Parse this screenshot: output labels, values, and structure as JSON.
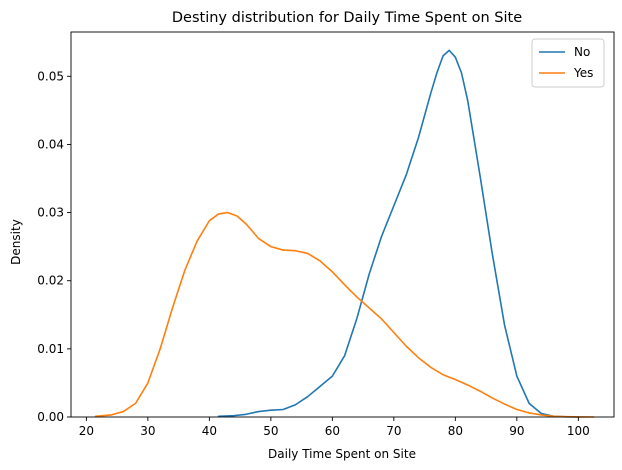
{
  "chart_data": {
    "type": "line",
    "title": "Destiny distribution for Daily Time Spent on Site",
    "xlabel": "Daily Time Spent on Site",
    "ylabel": "Density",
    "xlim": [
      17.5,
      105.8
    ],
    "ylim": [
      0,
      0.0565
    ],
    "xticks": [
      20,
      30,
      40,
      50,
      60,
      70,
      80,
      90,
      100
    ],
    "yticks": [
      0.0,
      0.01,
      0.02,
      0.03,
      0.04,
      0.05
    ],
    "ytick_labels": [
      "0.00",
      "0.01",
      "0.02",
      "0.03",
      "0.04",
      "0.05"
    ],
    "grid": false,
    "legend": "top-right",
    "series": [
      {
        "name": "No",
        "color": "#1f77b4",
        "x": [
          41.5,
          44,
          46,
          48,
          50,
          52,
          54,
          56,
          58,
          60,
          62,
          64,
          66,
          68,
          70,
          72,
          74,
          76,
          77,
          78,
          79,
          80,
          81,
          82,
          84,
          86,
          88,
          90,
          92,
          94,
          96,
          98,
          100
        ],
        "y": [
          0.0001,
          0.0002,
          0.0004,
          0.0008,
          0.001,
          0.0011,
          0.0018,
          0.003,
          0.0045,
          0.006,
          0.009,
          0.0145,
          0.021,
          0.0265,
          0.031,
          0.0355,
          0.041,
          0.0475,
          0.0505,
          0.053,
          0.0538,
          0.0528,
          0.0505,
          0.0465,
          0.0355,
          0.024,
          0.0135,
          0.006,
          0.002,
          0.0005,
          0.0001,
          2e-05,
          0.0
        ]
      },
      {
        "name": "Yes",
        "color": "#ff7f0e",
        "x": [
          21.5,
          24,
          26,
          28,
          30,
          32,
          34,
          36,
          38,
          40,
          41.5,
          43,
          44.5,
          46,
          48,
          50,
          52,
          54,
          56,
          58,
          60,
          62,
          64,
          66,
          68,
          70,
          72,
          74,
          76,
          78,
          80,
          82,
          84,
          86,
          88,
          90,
          92,
          94,
          96,
          98,
          100,
          102.5
        ],
        "y": [
          0.0001,
          0.0003,
          0.0008,
          0.002,
          0.005,
          0.01,
          0.016,
          0.0215,
          0.0258,
          0.0288,
          0.0298,
          0.03,
          0.0295,
          0.0283,
          0.0262,
          0.025,
          0.0245,
          0.0244,
          0.024,
          0.0229,
          0.0213,
          0.0194,
          0.0176,
          0.016,
          0.0144,
          0.0124,
          0.0104,
          0.0087,
          0.0073,
          0.0062,
          0.0055,
          0.0047,
          0.0038,
          0.0028,
          0.0019,
          0.0011,
          0.0006,
          0.0003,
          0.0001,
          4e-05,
          1e-05,
          0.0
        ]
      }
    ]
  }
}
